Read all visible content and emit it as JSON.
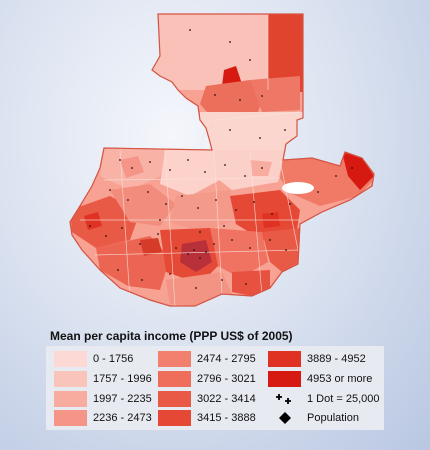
{
  "legend": {
    "title": "Mean per capita income (PPP US$ of 2005)",
    "classes": [
      {
        "label": "0 - 1756",
        "color": "#fcd9d4"
      },
      {
        "label": "1757 - 1996",
        "color": "#f9c4ba"
      },
      {
        "label": "1997 - 2235",
        "color": "#f7ac9f"
      },
      {
        "label": "2236 - 2473",
        "color": "#f49587"
      },
      {
        "label": "2474 - 2795",
        "color": "#f1806f"
      },
      {
        "label": "2796 - 3021",
        "color": "#ee6d5b"
      },
      {
        "label": "3022 - 3414",
        "color": "#e95a46"
      },
      {
        "label": "3415 - 3888",
        "color": "#e54834"
      },
      {
        "label": "3889 - 4952",
        "color": "#df3223"
      },
      {
        "label": "4953 or more",
        "color": "#d61a12"
      }
    ],
    "dot_label": "1 Dot = 25,000",
    "dot_icon": "plus-dots-icon",
    "population_label": "Population",
    "population_icon": "diamond-icon"
  }
}
